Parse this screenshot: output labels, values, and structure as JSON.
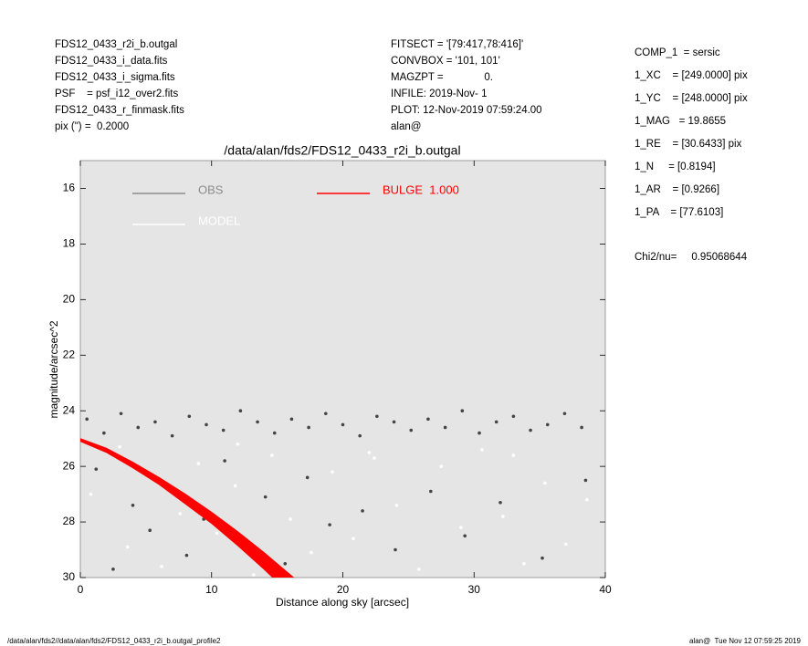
{
  "chart_data": {
    "type": "scatter",
    "title": "/data/alan/fds2/FDS12_0433_r2i_b.outgal",
    "x_label": "Distance along sky [arcsec]",
    "y_label": "magnitude/arcsec^2",
    "xlim": [
      0,
      40
    ],
    "xticks": [
      0,
      10,
      20,
      30,
      40
    ],
    "ylim": [
      30,
      15
    ],
    "yticks": [
      16,
      18,
      20,
      22,
      24,
      26,
      28,
      30
    ],
    "y_inverted": true,
    "background": "#e5e5e5",
    "annotations": {
      "left": [
        "FDS12_0433_r2i_b.outgal",
        "FDS12_0433_i_data.fits",
        "FDS12_0433_i_sigma.fits",
        "PSF    = psf_i12_over2.fits",
        "FDS12_0433_r_finmask.fits",
        "pix (\") =  0.2000"
      ],
      "middle": [
        "FITSECT = '[79:417,78:416]'",
        "CONVBOX = '101, 101'",
        "MAGZPT =              0.",
        "INFILE: 2019-Nov- 1",
        "PLOT: 12-Nov-2019 07:59:24.00",
        "alan@"
      ],
      "right": [
        "COMP_1  = sersic",
        "1_XC    = [249.0000] pix",
        "1_YC    = [248.0000] pix",
        "1_MAG   = 19.8655",
        "1_RE    = [30.6433] pix",
        "1_N     = [0.8194]",
        "1_AR    = [0.9266]",
        "1_PA    = [77.6103]"
      ],
      "chi2": "Chi2/nu=     0.95068644",
      "footer_left": "/data/alan/fds2//data/alan/fds2/FDS12_0433_r2i_b.outgal_profile2",
      "footer_right": "alan@  Tue Nov 12 07:59:25 2019"
    },
    "series": [
      {
        "name": "OBS",
        "color": "#444444",
        "legend_color": "#8c8c8c",
        "kind": "points",
        "x": [
          0.5,
          1.8,
          3.1,
          4.4,
          5.7,
          7.0,
          8.3,
          9.6,
          10.9,
          12.2,
          13.5,
          14.8,
          16.1,
          17.4,
          18.7,
          20.0,
          21.3,
          22.6,
          23.9,
          25.2,
          26.5,
          27.8,
          29.1,
          30.4,
          31.7,
          33.0,
          34.3,
          35.6,
          36.9,
          38.2,
          1.2,
          2.5,
          4.0,
          5.3,
          6.8,
          8.1,
          9.4,
          11.0,
          12.7,
          14.1,
          15.6,
          17.3,
          19.0,
          21.5,
          24.0,
          26.7,
          29.3,
          32.0,
          35.2,
          38.5
        ],
        "values": [
          24.3,
          24.8,
          24.1,
          24.6,
          24.4,
          24.9,
          24.2,
          24.5,
          24.7,
          24.0,
          24.4,
          24.8,
          24.3,
          24.6,
          24.1,
          24.5,
          24.9,
          24.2,
          24.4,
          24.7,
          24.3,
          24.6,
          24.0,
          24.8,
          24.4,
          24.2,
          24.7,
          24.5,
          24.1,
          24.6,
          26.1,
          29.7,
          27.4,
          28.3,
          26.8,
          29.2,
          27.9,
          25.8,
          28.7,
          27.1,
          29.5,
          26.4,
          28.1,
          27.6,
          29.0,
          26.9,
          28.5,
          27.3,
          29.3,
          26.5
        ]
      },
      {
        "name": "MODEL",
        "color": "#ffffff",
        "legend_color": "#ffffff",
        "kind": "points",
        "x": [
          0.8,
          2.1,
          3.6,
          5.0,
          6.2,
          7.6,
          9.0,
          10.4,
          11.8,
          13.2,
          14.6,
          16.0,
          17.6,
          19.2,
          20.8,
          22.4,
          24.1,
          25.8,
          27.5,
          29.0,
          30.6,
          32.2,
          33.8,
          35.4,
          37.0,
          38.6,
          3.0,
          12.0,
          22.0,
          33.0
        ],
        "values": [
          27.0,
          25.5,
          28.9,
          26.3,
          29.6,
          27.7,
          25.9,
          28.4,
          26.7,
          29.9,
          25.6,
          27.9,
          29.1,
          26.2,
          28.6,
          25.7,
          27.4,
          29.7,
          26.0,
          28.2,
          25.4,
          27.8,
          29.5,
          26.6,
          28.8,
          27.2,
          25.3,
          25.2,
          25.5,
          25.6
        ]
      },
      {
        "name": "BULGE  1.000",
        "color": "#ff0000",
        "legend_color": "#ff0000",
        "kind": "band",
        "x": [
          0,
          2,
          4,
          6,
          8,
          10,
          12,
          14,
          16,
          17
        ],
        "values": [
          25.0,
          25.35,
          25.85,
          26.4,
          27.0,
          27.65,
          28.35,
          29.1,
          29.9,
          30.3
        ],
        "values_faint": [
          25.1,
          25.5,
          26.05,
          26.65,
          27.35,
          28.05,
          28.85,
          29.7,
          30.6,
          31.0
        ]
      }
    ]
  }
}
